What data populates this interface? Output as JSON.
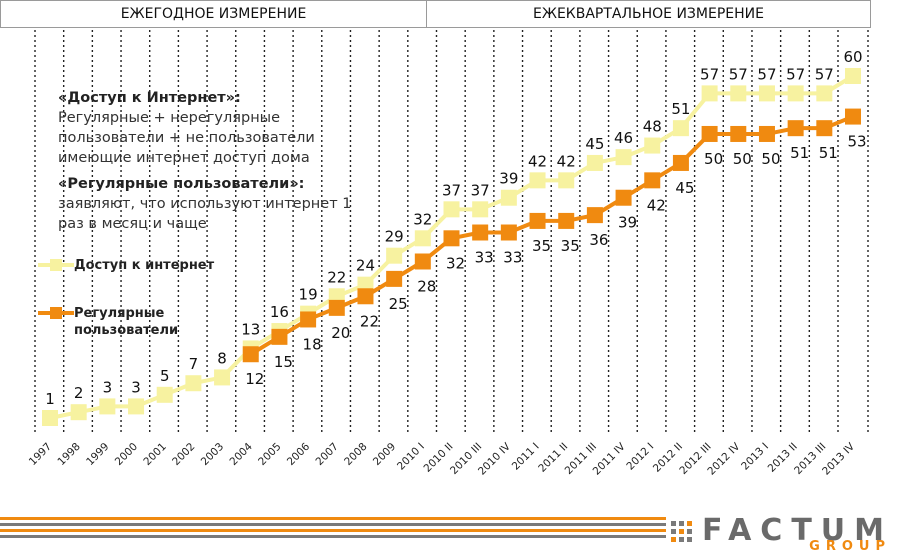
{
  "header": {
    "annual": "ЕЖЕГОДНОЕ ИЗМЕРЕНИЕ",
    "quarterly": "ЕЖЕКВАРТАЛЬНОЕ ИЗМЕРЕНИЕ"
  },
  "notes": {
    "access_title": "«Доступ к Интернет»:",
    "access_text": "Регулярные + нерегулярные пользователи + не пользователи имеющие интернет доступ дома",
    "regular_title": "«Регулярные пользователи»:",
    "regular_text": "заявляют, что используют интернет 1 раз в месяц и чаще"
  },
  "logo": {
    "brand": "FACTUM",
    "sub": "GROUP"
  },
  "colors": {
    "access": "#f7f2a0",
    "regular": "#f08a10",
    "accent_gray": "#7a7a7a"
  },
  "chart_data": {
    "type": "line",
    "categories": [
      "1997",
      "1998",
      "1999",
      "2000",
      "2001",
      "2002",
      "2003",
      "2004",
      "2005",
      "2006",
      "2007",
      "2008",
      "2009",
      "2010 I",
      "2010 II",
      "2010 III",
      "2010 IV",
      "2011 I",
      "2011 II",
      "2011 III",
      "2011 IV",
      "2012 I",
      "2012 II",
      "2012 III",
      "2012 IV",
      "2013 I",
      "2013 II",
      "2013 III",
      "2013 IV"
    ],
    "series": [
      {
        "name": "Доступ к интернет",
        "values": [
          1,
          2,
          3,
          3,
          5,
          7,
          8,
          13,
          16,
          19,
          22,
          24,
          29,
          32,
          37,
          37,
          39,
          42,
          42,
          45,
          46,
          48,
          51,
          57,
          57,
          57,
          57,
          57,
          60
        ]
      },
      {
        "name": "Регулярные пользователи",
        "values": [
          null,
          null,
          null,
          null,
          null,
          null,
          null,
          12,
          15,
          18,
          20,
          22,
          25,
          28,
          32,
          33,
          33,
          35,
          35,
          36,
          39,
          42,
          45,
          50,
          50,
          50,
          51,
          51,
          53
        ]
      }
    ],
    "legend": "left",
    "grid": "vertical dotted",
    "ylim": [
      0,
      62
    ]
  }
}
